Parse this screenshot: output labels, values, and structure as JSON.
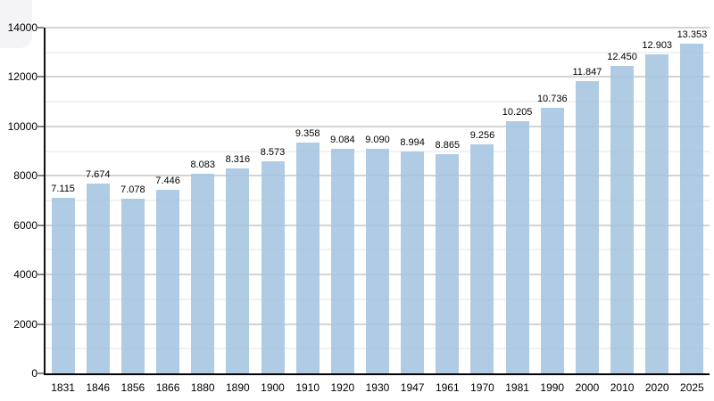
{
  "chart_data": {
    "type": "bar",
    "title": "",
    "xlabel": "",
    "ylabel": "",
    "categories": [
      "1831",
      "1846",
      "1856",
      "1866",
      "1880",
      "1890",
      "1900",
      "1910",
      "1920",
      "1930",
      "1947",
      "1961",
      "1970",
      "1981",
      "1990",
      "2000",
      "2010",
      "2020",
      "2025"
    ],
    "values": [
      7115,
      7674,
      7078,
      7446,
      8083,
      8316,
      8573,
      9358,
      9084,
      9090,
      8994,
      8865,
      9256,
      10205,
      10736,
      11847,
      12450,
      12903,
      13353
    ],
    "value_labels": [
      "7.115",
      "7.674",
      "7.078",
      "7.446",
      "8.083",
      "8.316",
      "8.573",
      "9.358",
      "9.084",
      "9.090",
      "8.994",
      "8.865",
      "9.256",
      "10.205",
      "10.736",
      "11.847",
      "12.450",
      "12.903",
      "13.353"
    ],
    "ylim": [
      0,
      14000
    ],
    "y_tick_values": [
      0,
      2000,
      4000,
      6000,
      8000,
      10000,
      12000,
      14000
    ],
    "y_tick_labels": [
      "0",
      "2000",
      "4000",
      "6000",
      "8000",
      "10000",
      "12000",
      "14000"
    ],
    "grid": "on",
    "grid_step_minor": 1000,
    "grid_step_major": 2000,
    "legend": "none",
    "colors": {
      "bar": "#a5c4e0",
      "grid_major": "#a9a9a9",
      "grid_minor": "#e4e4e4",
      "axis": "#111111",
      "text": "#000000",
      "background": "#ffffff"
    }
  }
}
